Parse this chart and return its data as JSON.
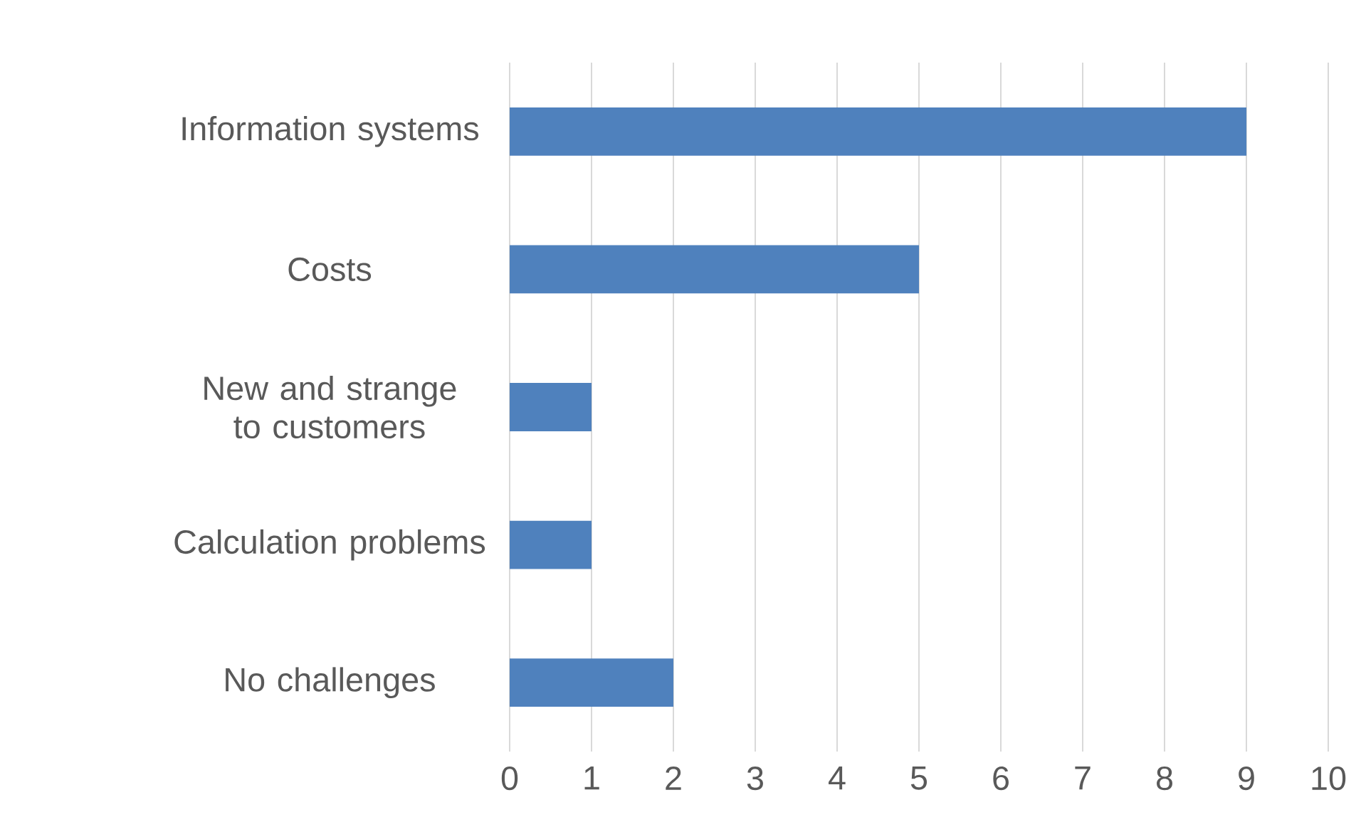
{
  "chart_data": {
    "type": "bar",
    "orientation": "horizontal",
    "categories": [
      "Information systems",
      "Costs",
      "New and strange to customers",
      "Calculation problems",
      "No challenges"
    ],
    "values": [
      9,
      5,
      1,
      1,
      2
    ],
    "color": "#4f81bd",
    "xlim": [
      0,
      10
    ],
    "xticks": [
      0,
      1,
      2,
      3,
      4,
      5,
      6,
      7,
      8,
      9,
      10
    ],
    "grid": "x"
  }
}
